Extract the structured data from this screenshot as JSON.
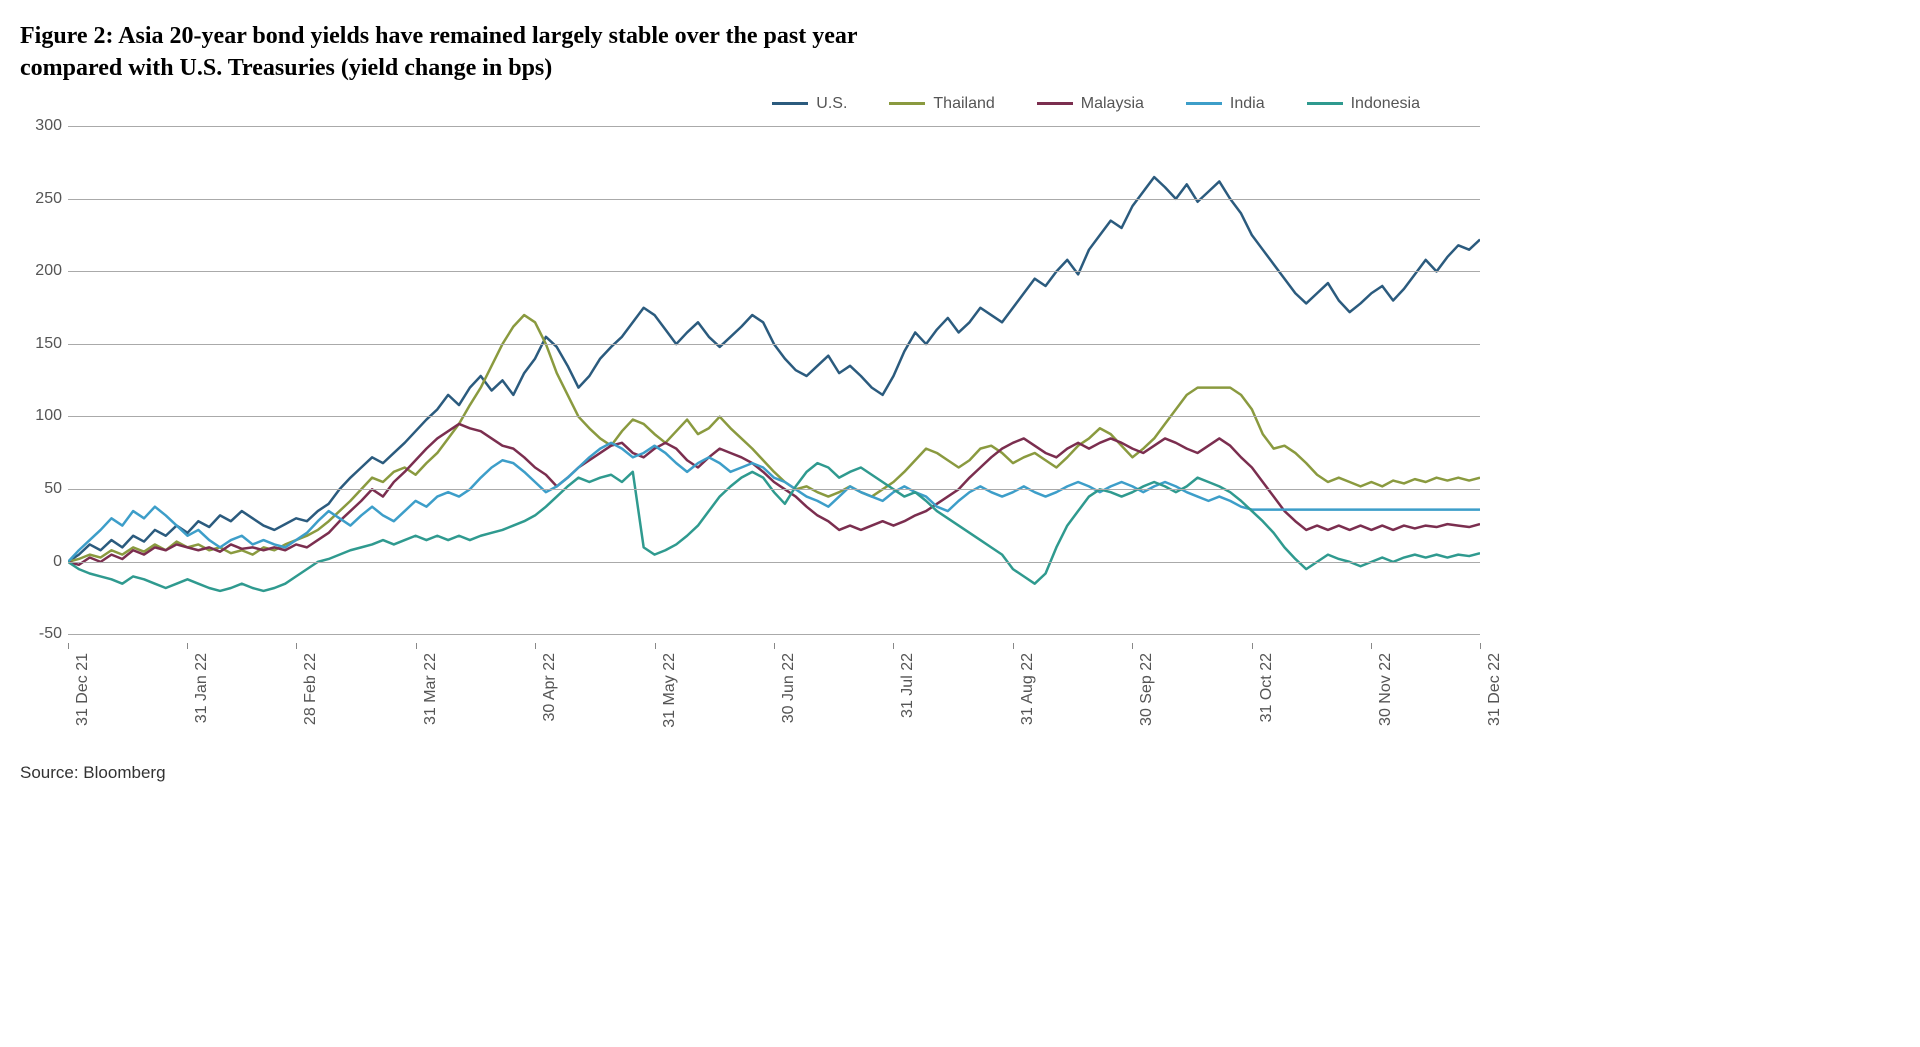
{
  "title_line1": "Figure 2: Asia 20-year bond yields have remained largely stable over the past year",
  "title_line2": "compared with U.S. Treasuries (yield change in bps)",
  "source": "Source: Bloomberg",
  "chart": {
    "type": "line",
    "background_color": "#ffffff",
    "grid_color": "#aaaaaa",
    "axis_text_color": "#555555",
    "title_fontsize": 24,
    "axis_fontsize": 16,
    "line_width": 2.5,
    "ylim": [
      -60,
      305
    ],
    "yticks": [
      -50,
      0,
      50,
      100,
      150,
      200,
      250,
      300
    ],
    "n_points": 131,
    "xticks": [
      {
        "idx": 0,
        "label": "31 Dec 21"
      },
      {
        "idx": 11,
        "label": "31 Jan 22"
      },
      {
        "idx": 21,
        "label": "28 Feb 22"
      },
      {
        "idx": 32,
        "label": "31 Mar 22"
      },
      {
        "idx": 43,
        "label": "30 Apr 22"
      },
      {
        "idx": 54,
        "label": "31 May 22"
      },
      {
        "idx": 65,
        "label": "30 Jun 22"
      },
      {
        "idx": 76,
        "label": "31 Jul 22"
      },
      {
        "idx": 87,
        "label": "31 Aug 22"
      },
      {
        "idx": 98,
        "label": "30 Sep 22"
      },
      {
        "idx": 109,
        "label": "31 Oct 22"
      },
      {
        "idx": 120,
        "label": "30 Nov 22"
      },
      {
        "idx": 130,
        "label": "31 Dec 22"
      }
    ],
    "legend": [
      {
        "label": "U.S.",
        "color": "#2b5b7e"
      },
      {
        "label": "Thailand",
        "color": "#8a9a3f"
      },
      {
        "label": "Malaysia",
        "color": "#7b2e4f"
      },
      {
        "label": "India",
        "color": "#3d9ec9"
      },
      {
        "label": "Indonesia",
        "color": "#2f9a8f"
      }
    ],
    "series": {
      "us": {
        "color": "#2b5b7e",
        "values": [
          0,
          5,
          12,
          8,
          15,
          10,
          18,
          14,
          22,
          18,
          25,
          20,
          28,
          24,
          32,
          28,
          35,
          30,
          25,
          22,
          26,
          30,
          28,
          35,
          40,
          50,
          58,
          65,
          72,
          68,
          75,
          82,
          90,
          98,
          105,
          115,
          108,
          120,
          128,
          118,
          125,
          115,
          130,
          140,
          155,
          148,
          135,
          120,
          128,
          140,
          148,
          155,
          165,
          175,
          170,
          160,
          150,
          158,
          165,
          155,
          148,
          155,
          162,
          170,
          165,
          150,
          140,
          132,
          128,
          135,
          142,
          130,
          135,
          128,
          120,
          115,
          128,
          145,
          158,
          150,
          160,
          168,
          158,
          165,
          175,
          170,
          165,
          175,
          185,
          195,
          190,
          200,
          208,
          198,
          215,
          225,
          235,
          230,
          245,
          255,
          265,
          258,
          250,
          260,
          248,
          255,
          262,
          250,
          240,
          225,
          215,
          205,
          195,
          185,
          178,
          185,
          192,
          180,
          172,
          178,
          185,
          190,
          180,
          188,
          198,
          208,
          200,
          210,
          218,
          215,
          222
        ]
      },
      "thailand": {
        "color": "#8a9a3f",
        "values": [
          0,
          2,
          5,
          3,
          8,
          5,
          10,
          7,
          12,
          8,
          14,
          10,
          12,
          8,
          10,
          6,
          8,
          5,
          10,
          8,
          12,
          15,
          18,
          22,
          28,
          35,
          42,
          50,
          58,
          55,
          62,
          65,
          60,
          68,
          75,
          85,
          95,
          108,
          120,
          135,
          150,
          162,
          170,
          165,
          150,
          130,
          115,
          100,
          92,
          85,
          80,
          90,
          98,
          95,
          88,
          82,
          90,
          98,
          88,
          92,
          100,
          92,
          85,
          78,
          70,
          62,
          55,
          50,
          52,
          48,
          45,
          48,
          52,
          48,
          45,
          50,
          55,
          62,
          70,
          78,
          75,
          70,
          65,
          70,
          78,
          80,
          75,
          68,
          72,
          75,
          70,
          65,
          72,
          80,
          85,
          92,
          88,
          80,
          72,
          78,
          85,
          95,
          105,
          115,
          120,
          120,
          120,
          120,
          115,
          105,
          88,
          78,
          80,
          75,
          68,
          60,
          55,
          58,
          55,
          52,
          55,
          52,
          56,
          54,
          57,
          55,
          58,
          56,
          58,
          56,
          58
        ]
      },
      "malaysia": {
        "color": "#7b2e4f",
        "values": [
          0,
          -2,
          3,
          0,
          5,
          2,
          8,
          5,
          10,
          8,
          12,
          10,
          8,
          10,
          7,
          12,
          9,
          10,
          8,
          10,
          8,
          12,
          10,
          15,
          20,
          28,
          35,
          42,
          50,
          45,
          55,
          62,
          70,
          78,
          85,
          90,
          95,
          92,
          90,
          85,
          80,
          78,
          72,
          65,
          60,
          52,
          58,
          65,
          70,
          75,
          80,
          82,
          75,
          72,
          78,
          82,
          78,
          70,
          65,
          72,
          78,
          75,
          72,
          68,
          62,
          55,
          50,
          45,
          38,
          32,
          28,
          22,
          25,
          22,
          25,
          28,
          25,
          28,
          32,
          35,
          40,
          45,
          50,
          58,
          65,
          72,
          78,
          82,
          85,
          80,
          75,
          72,
          78,
          82,
          78,
          82,
          85,
          82,
          78,
          75,
          80,
          85,
          82,
          78,
          75,
          80,
          85,
          80,
          72,
          65,
          55,
          45,
          35,
          28,
          22,
          25,
          22,
          25,
          22,
          25,
          22,
          25,
          22,
          25,
          23,
          25,
          24,
          26,
          25,
          24,
          26
        ]
      },
      "india": {
        "color": "#3d9ec9",
        "values": [
          0,
          8,
          15,
          22,
          30,
          25,
          35,
          30,
          38,
          32,
          25,
          18,
          22,
          15,
          10,
          15,
          18,
          12,
          15,
          12,
          10,
          15,
          20,
          28,
          35,
          30,
          25,
          32,
          38,
          32,
          28,
          35,
          42,
          38,
          45,
          48,
          45,
          50,
          58,
          65,
          70,
          68,
          62,
          55,
          48,
          52,
          58,
          65,
          72,
          78,
          82,
          78,
          72,
          75,
          80,
          75,
          68,
          62,
          68,
          72,
          68,
          62,
          65,
          68,
          65,
          58,
          55,
          50,
          45,
          42,
          38,
          45,
          52,
          48,
          45,
          42,
          48,
          52,
          48,
          45,
          38,
          35,
          42,
          48,
          52,
          48,
          45,
          48,
          52,
          48,
          45,
          48,
          52,
          55,
          52,
          48,
          52,
          55,
          52,
          48,
          52,
          55,
          52,
          48,
          45,
          42,
          45,
          42,
          38,
          36,
          36,
          36,
          36,
          36,
          36,
          36,
          36,
          36,
          36,
          36,
          36,
          36,
          36,
          36,
          36,
          36,
          36,
          36,
          36,
          36,
          36
        ]
      },
      "indonesia": {
        "color": "#2f9a8f",
        "values": [
          0,
          -5,
          -8,
          -10,
          -12,
          -15,
          -10,
          -12,
          -15,
          -18,
          -15,
          -12,
          -15,
          -18,
          -20,
          -18,
          -15,
          -18,
          -20,
          -18,
          -15,
          -10,
          -5,
          0,
          2,
          5,
          8,
          10,
          12,
          15,
          12,
          15,
          18,
          15,
          18,
          15,
          18,
          15,
          18,
          20,
          22,
          25,
          28,
          32,
          38,
          45,
          52,
          58,
          55,
          58,
          60,
          55,
          62,
          10,
          5,
          8,
          12,
          18,
          25,
          35,
          45,
          52,
          58,
          62,
          58,
          48,
          40,
          52,
          62,
          68,
          65,
          58,
          62,
          65,
          60,
          55,
          50,
          45,
          48,
          42,
          35,
          30,
          25,
          20,
          15,
          10,
          5,
          -5,
          -10,
          -15,
          -8,
          10,
          25,
          35,
          45,
          50,
          48,
          45,
          48,
          52,
          55,
          52,
          48,
          52,
          58,
          55,
          52,
          48,
          42,
          35,
          28,
          20,
          10,
          2,
          -5,
          0,
          5,
          2,
          0,
          -3,
          0,
          3,
          0,
          3,
          5,
          3,
          5,
          3,
          5,
          4,
          6
        ]
      }
    }
  }
}
